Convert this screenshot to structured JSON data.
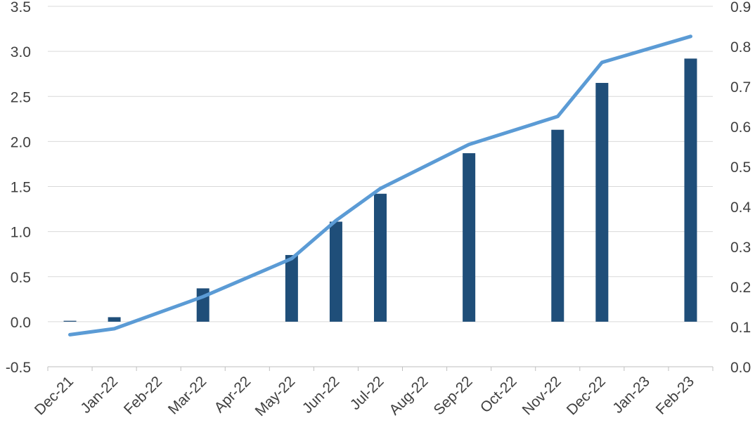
{
  "chart_data": {
    "type": "bar+line",
    "categories": [
      "Dec-21",
      "Jan-22",
      "Feb-22",
      "Mar-22",
      "Apr-22",
      "May-22",
      "Jun-22",
      "Jul-22",
      "Aug-22",
      "Sep-22",
      "Oct-22",
      "Nov-22",
      "Dec-22",
      "Jan-23",
      "Feb-23"
    ],
    "series": [
      {
        "type": "bar",
        "axis": "left",
        "color": "#1f4e79",
        "values": [
          0.01,
          0.05,
          null,
          0.37,
          null,
          0.74,
          1.11,
          1.42,
          null,
          1.87,
          null,
          2.13,
          2.65,
          null,
          2.92
        ]
      },
      {
        "type": "line",
        "axis": "right",
        "color": "#5b9bd5",
        "points": [
          {
            "x": "Dec-21",
            "y": 0.08
          },
          {
            "x": "Jan-22",
            "y": 0.095
          },
          {
            "x": "Mar-22",
            "y": 0.175
          },
          {
            "x": "May-22",
            "y": 0.27
          },
          {
            "x": "Jun-22",
            "y": 0.365
          },
          {
            "x": "Jul-22",
            "y": 0.445
          },
          {
            "x": "Sep-22",
            "y": 0.555
          },
          {
            "x": "Nov-22",
            "y": 0.625
          },
          {
            "x": "Dec-22",
            "y": 0.76
          },
          {
            "x": "Feb-23",
            "y": 0.825
          }
        ]
      }
    ],
    "y_left": {
      "min": -0.5,
      "max": 3.5,
      "step": 0.5,
      "tick_labels": [
        "-0.5",
        "0.0",
        "0.5",
        "1.0",
        "1.5",
        "2.0",
        "2.5",
        "3.0",
        "3.5"
      ]
    },
    "y_right": {
      "min": 0.0,
      "max": 0.9,
      "step": 0.1,
      "tick_labels": [
        "0.0",
        "0.1",
        "0.2",
        "0.3",
        "0.4",
        "0.5",
        "0.6",
        "0.7",
        "0.8",
        "0.9"
      ]
    },
    "grid": true,
    "legend": "none",
    "colors": {
      "bar": "#1f4e79",
      "line": "#5b9bd5",
      "grid": "#d9d9d9",
      "axis": "#bfbfbf",
      "text": "#404040"
    }
  }
}
